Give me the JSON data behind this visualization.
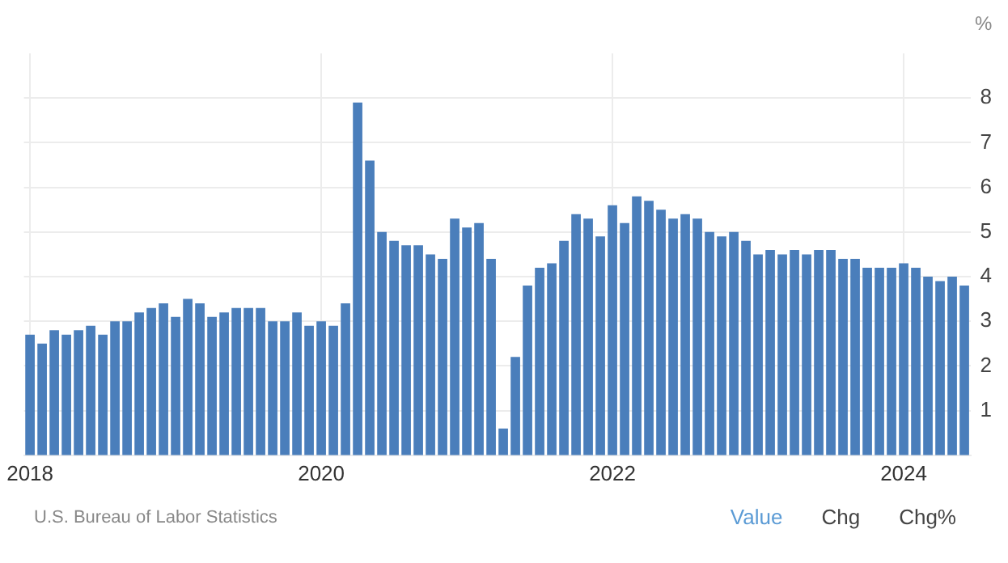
{
  "chart_data": {
    "type": "bar",
    "ylabel": "%",
    "categories": [
      "2018",
      null,
      null,
      null,
      null,
      null,
      null,
      null,
      null,
      null,
      null,
      null,
      null,
      null,
      null,
      null,
      null,
      null,
      null,
      null,
      null,
      null,
      null,
      null,
      "2020",
      null,
      null,
      null,
      null,
      null,
      null,
      null,
      null,
      null,
      null,
      null,
      null,
      null,
      null,
      null,
      null,
      null,
      null,
      null,
      null,
      null,
      null,
      null,
      "2022",
      null,
      null,
      null,
      null,
      null,
      null,
      null,
      null,
      null,
      null,
      null,
      null,
      null,
      null,
      null,
      null,
      null,
      null,
      null,
      null,
      null,
      null,
      null,
      "2024",
      null,
      null,
      null,
      null,
      null
    ],
    "values": [
      2.7,
      2.5,
      2.8,
      2.7,
      2.8,
      2.9,
      2.7,
      3.0,
      3.0,
      3.2,
      3.3,
      3.4,
      3.1,
      3.5,
      3.4,
      3.1,
      3.2,
      3.3,
      3.3,
      3.3,
      3.0,
      3.0,
      3.2,
      2.9,
      3.0,
      2.9,
      3.4,
      7.9,
      6.6,
      5.0,
      4.8,
      4.7,
      4.7,
      4.5,
      4.4,
      5.3,
      5.1,
      5.2,
      4.4,
      0.6,
      2.2,
      3.8,
      4.2,
      4.3,
      4.8,
      5.4,
      5.3,
      4.9,
      5.6,
      5.2,
      5.8,
      5.7,
      5.5,
      5.3,
      5.4,
      5.3,
      5.0,
      4.9,
      5.0,
      4.8,
      4.5,
      4.6,
      4.5,
      4.6,
      4.5,
      4.6,
      4.6,
      4.4,
      4.4,
      4.2,
      4.2,
      4.2,
      4.3,
      4.2,
      4.0,
      3.9,
      4.0,
      3.8
    ],
    "color": "#4a7ebb",
    "ylim": [
      0,
      9
    ],
    "yticks": [
      1,
      2,
      3,
      4,
      5,
      6,
      7,
      8
    ],
    "grid": true,
    "annotations": [
      "U.S. Bureau of Labor Statistics",
      "Value",
      "Chg",
      "Chg%"
    ]
  }
}
